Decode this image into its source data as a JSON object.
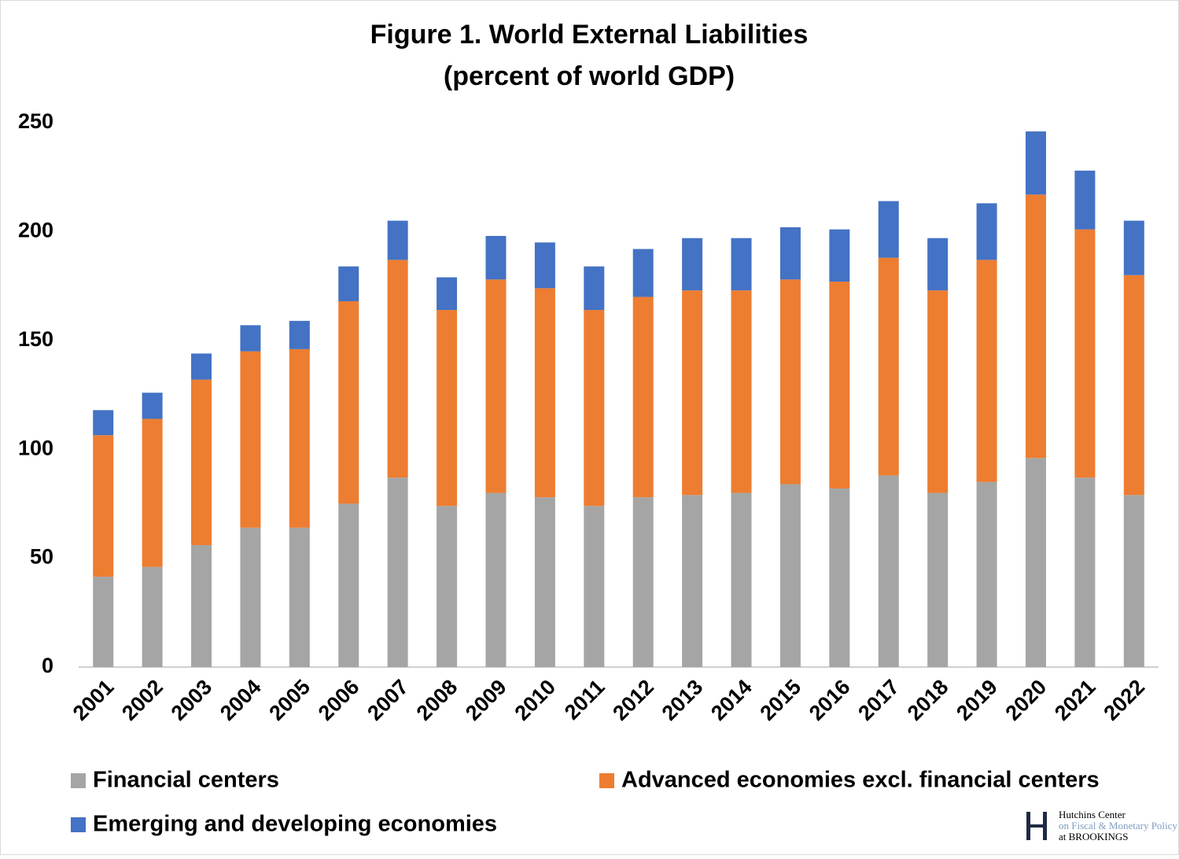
{
  "chart_data": {
    "type": "stacked_bar",
    "title": "Figure 1. World External Liabilities",
    "subtitle": "(percent of world GDP)",
    "categories": [
      "2001",
      "2002",
      "2003",
      "2004",
      "2005",
      "2006",
      "2007",
      "2008",
      "2009",
      "2010",
      "2011",
      "2012",
      "2013",
      "2014",
      "2015",
      "2016",
      "2017",
      "2018",
      "2019",
      "2020",
      "2021",
      "2022"
    ],
    "series": [
      {
        "name": "Financial centers",
        "color": "#a5a5a5",
        "values": [
          41.5,
          46,
          56,
          64,
          64,
          75,
          87,
          74,
          80,
          78,
          74,
          78,
          79,
          80,
          84,
          82,
          88,
          80,
          85,
          96,
          87,
          79
        ]
      },
      {
        "name": "Advanced economies excl. financial centers",
        "color": "#ed7d31",
        "values": [
          65,
          68,
          76,
          81,
          82,
          93,
          100,
          90,
          98,
          96,
          90,
          92,
          94,
          93,
          94,
          95,
          100,
          93,
          102,
          121,
          114,
          101
        ]
      },
      {
        "name": "Emerging and developing economies",
        "color": "#4472c4",
        "values": [
          11.5,
          12,
          12,
          12,
          13,
          16,
          18,
          15,
          20,
          21,
          20,
          22,
          24,
          24,
          24,
          24,
          26,
          24,
          26,
          29,
          27,
          25
        ]
      }
    ],
    "ylim": [
      0,
      250
    ],
    "yticks": [
      0,
      50,
      100,
      150,
      200,
      250
    ],
    "grid": false,
    "logo": {
      "line1": "Hutchins Center",
      "line2": "on Fiscal & Monetary Policy",
      "line3": "at BROOKINGS"
    }
  }
}
